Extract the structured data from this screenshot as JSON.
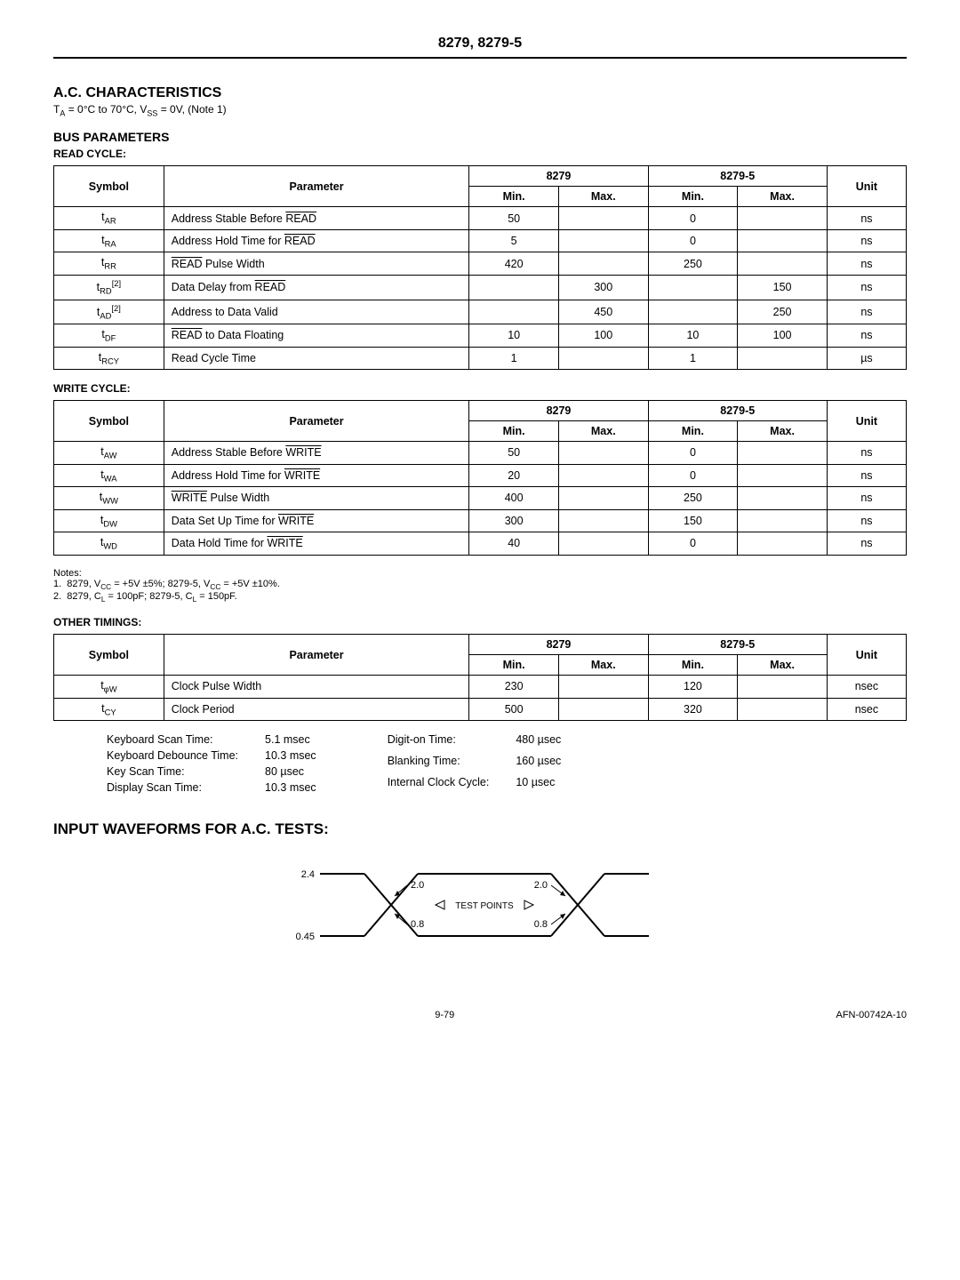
{
  "header": "8279, 8279-5",
  "ac_title": "A.C. CHARACTERISTICS",
  "ac_cond": "T_A = 0°C to 70°C, V_SS = 0V, (Note 1)",
  "bus_title": "BUS PARAMETERS",
  "read_label": "READ CYCLE:",
  "write_label": "WRITE CYCLE:",
  "other_label": "OTHER TIMINGS:",
  "col": {
    "symbol": "Symbol",
    "param": "Parameter",
    "p1": "8279",
    "p2": "8279-5",
    "min": "Min.",
    "max": "Max.",
    "unit": "Unit"
  },
  "read": [
    {
      "sym": "t_AR",
      "param": "Address Stable Before READ",
      "ov": "READ",
      "min1": "50",
      "max1": "",
      "min2": "0",
      "max2": "",
      "unit": "ns"
    },
    {
      "sym": "t_RA",
      "param": "Address Hold Time for READ",
      "ov": "READ",
      "min1": "5",
      "max1": "",
      "min2": "0",
      "max2": "",
      "unit": "ns"
    },
    {
      "sym": "t_RR",
      "param": "READ Pulse Width",
      "ov": "READ",
      "min1": "420",
      "max1": "",
      "min2": "250",
      "max2": "",
      "unit": "ns"
    },
    {
      "sym": "t_RD[2]",
      "param": "Data Delay from READ",
      "ov": "READ",
      "min1": "",
      "max1": "300",
      "min2": "",
      "max2": "150",
      "unit": "ns"
    },
    {
      "sym": "t_AD[2]",
      "param": "Address to Data Valid",
      "ov": "",
      "min1": "",
      "max1": "450",
      "min2": "",
      "max2": "250",
      "unit": "ns"
    },
    {
      "sym": "t_DF",
      "param": "READ to Data Floating",
      "ov": "READ",
      "min1": "10",
      "max1": "100",
      "min2": "10",
      "max2": "100",
      "unit": "ns"
    },
    {
      "sym": "t_RCY",
      "param": "Read Cycle Time",
      "ov": "",
      "min1": "1",
      "max1": "",
      "min2": "1",
      "max2": "",
      "unit": "µs"
    }
  ],
  "write": [
    {
      "sym": "t_AW",
      "param": "Address Stable Before WRITE",
      "ov": "WRITE",
      "min1": "50",
      "max1": "",
      "min2": "0",
      "max2": "",
      "unit": "ns"
    },
    {
      "sym": "t_WA",
      "param": "Address Hold Time for WRITE",
      "ov": "WRITE",
      "min1": "20",
      "max1": "",
      "min2": "0",
      "max2": "",
      "unit": "ns"
    },
    {
      "sym": "t_WW",
      "param": "WRITE Pulse Width",
      "ov": "WRITE",
      "min1": "400",
      "max1": "",
      "min2": "250",
      "max2": "",
      "unit": "ns"
    },
    {
      "sym": "t_DW",
      "param": "Data Set Up Time for WRITE",
      "ov": "WRITE",
      "min1": "300",
      "max1": "",
      "min2": "150",
      "max2": "",
      "unit": "ns"
    },
    {
      "sym": "t_WD",
      "param": "Data Hold Time for WRITE",
      "ov": "WRITE",
      "min1": "40",
      "max1": "",
      "min2": "0",
      "max2": "",
      "unit": "ns"
    }
  ],
  "notes_title": "Notes:",
  "note1": "1.  8279, V_CC = +5V ±5%; 8279-5, V_CC = +5V ±10%.",
  "note2": "2.  8279, C_L = 100pF; 8279-5, C_L = 150pF.",
  "other": [
    {
      "sym": "t_φW",
      "param": "Clock Pulse Width",
      "min1": "230",
      "max1": "",
      "min2": "120",
      "max2": "",
      "unit": "nsec"
    },
    {
      "sym": "t_CY",
      "param": "Clock Period",
      "min1": "500",
      "max1": "",
      "min2": "320",
      "max2": "",
      "unit": "nsec"
    }
  ],
  "timings_left": [
    {
      "l": "Keyboard Scan Time:",
      "v": "5.1 msec"
    },
    {
      "l": "Keyboard Debounce Time:",
      "v": "10.3 msec"
    },
    {
      "l": "Key Scan Time:",
      "v": "80 µsec"
    },
    {
      "l": "Display Scan Time:",
      "v": "10.3 msec"
    }
  ],
  "timings_right": [
    {
      "l": "Digit-on Time:",
      "v": "480 µsec"
    },
    {
      "l": "Blanking Time:",
      "v": "160 µsec"
    },
    {
      "l": "Internal Clock Cycle:",
      "v": "10 µsec"
    }
  ],
  "waveform_title": "INPUT WAVEFORMS FOR A.C. TESTS:",
  "waveform": {
    "v_hi": "2.4",
    "v_lo": "0.45",
    "thr_hi": "2.0",
    "thr_lo": "0.8",
    "label": "TEST POINTS"
  },
  "footer": {
    "left": "",
    "center": "9-79",
    "right": "AFN-00742A-10"
  }
}
